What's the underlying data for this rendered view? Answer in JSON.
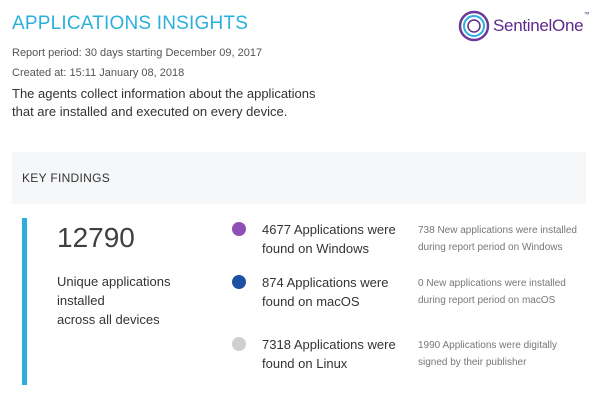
{
  "header": {
    "title": "APPLICATIONS INSIGHTS",
    "report_period": "Report period: 30 days starting December 09, 2017",
    "created_at": "Created at: 15:11 January 08, 2018",
    "description_line1": "The agents collect information about the applications",
    "description_line2": "that are installed and executed on every device."
  },
  "logo": {
    "text": "SentinelOne",
    "trademark": "™",
    "color": "#5b2b8a",
    "icon": "sentinelone-logo-icon"
  },
  "key_findings": {
    "title": "KEY FINDINGS",
    "total": "12790",
    "total_label_line1": "Unique applications",
    "total_label_line2": "installed",
    "total_label_line3": "across all devices",
    "accent_color": "#2bb0dd",
    "rows": [
      {
        "main_line1": "4677 Applications were",
        "main_line2": "found on Windows",
        "note_line1": "738 New applications were installed",
        "note_line2": "during report period on Windows",
        "color": "#8e4fb6"
      },
      {
        "main_line1": "874 Applications were",
        "main_line2": "found on macOS",
        "note_line1": "0 New applications were installed",
        "note_line2": "during report period on macOS",
        "color": "#1d4fa3"
      },
      {
        "main_line1": "7318 Applications were",
        "main_line2": "found on Linux",
        "note_line1": "1990 Applications were digitally",
        "note_line2": "signed by their publisher",
        "color": "#cfcfcf"
      }
    ]
  }
}
